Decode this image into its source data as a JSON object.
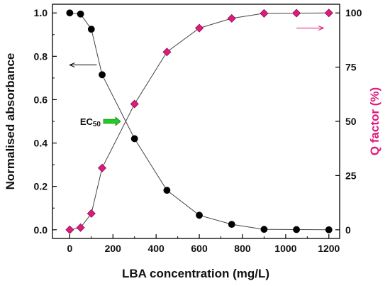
{
  "chart_data": {
    "type": "line",
    "xlabel": "LBA concentration (mg/L)",
    "ylabel_left": "Normalised absorbance",
    "ylabel_right": "Q factor (%)",
    "xlim": [
      -80,
      1250
    ],
    "ylim_left": [
      -0.04,
      1.04
    ],
    "ylim_right": [
      -4,
      104
    ],
    "x_ticks": [
      0,
      200,
      400,
      600,
      800,
      1000,
      1200
    ],
    "y_left_ticks": [
      0.0,
      0.2,
      0.4,
      0.6,
      0.8,
      1.0
    ],
    "y_right_ticks": [
      0,
      25,
      50,
      75,
      100
    ],
    "x_tick_labels": [
      "0",
      "200",
      "400",
      "600",
      "800",
      "1000",
      "1200"
    ],
    "y_left_tick_labels": [
      "0.0",
      "0.2",
      "0.4",
      "0.6",
      "0.8",
      "1.0"
    ],
    "y_right_tick_labels": [
      "0",
      "25",
      "50",
      "75",
      "100"
    ],
    "series": [
      {
        "axis": "left",
        "color": "#000000",
        "marker": "circle",
        "x": [
          0,
          50,
          100,
          150,
          300,
          450,
          600,
          750,
          900,
          1050,
          1200
        ],
        "y": [
          1.0,
          0.995,
          0.925,
          0.715,
          0.42,
          0.182,
          0.067,
          0.025,
          0.002,
          0.001,
          0.0
        ]
      },
      {
        "axis": "right",
        "color": "#e0197d",
        "marker": "diamond",
        "x": [
          0,
          50,
          100,
          150,
          300,
          450,
          600,
          750,
          900,
          1050,
          1200
        ],
        "y": [
          0,
          1,
          7.5,
          28.5,
          58,
          82,
          93,
          97.5,
          99.8,
          99.9,
          100
        ]
      }
    ],
    "annotations": {
      "ec50": {
        "label": "EC",
        "subscript": "50",
        "x": 255,
        "y": 0.5,
        "arrow_color": "#22cc22"
      },
      "left_arrow": {
        "axis": "left",
        "x_from": 125,
        "x_to": 0,
        "y": 0.76
      },
      "right_arrow": {
        "axis": "right",
        "x_from": 1050,
        "x_to": 1175,
        "y": 93
      }
    },
    "legend": "none",
    "grid": false
  }
}
